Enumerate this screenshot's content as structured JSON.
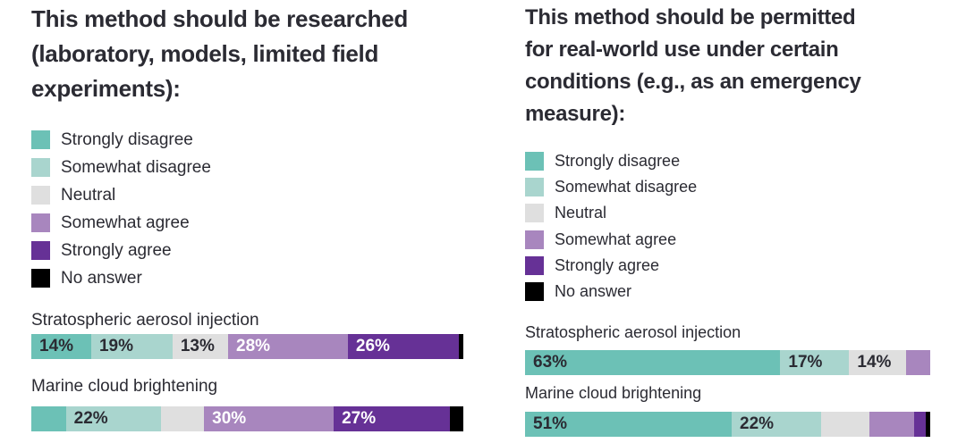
{
  "chart_data": [
    {
      "type": "bar",
      "orientation": "horizontal-stacked-100",
      "title": "This method should be researched (laboratory, models, limited field experiments):",
      "title_lines": [
        "This method should be researched",
        "(laboratory, models, limited field",
        "experiments):"
      ],
      "legend": [
        "Strongly disagree",
        "Somewhat disagree",
        "Neutral",
        "Somewhat agree",
        "Strongly agree",
        "No answer"
      ],
      "categories": [
        "Stratospheric aerosol injection",
        "Marine cloud brightening"
      ],
      "series": [
        {
          "name": "Strongly disagree",
          "values": [
            14,
            8
          ]
        },
        {
          "name": "Somewhat disagree",
          "values": [
            19,
            22
          ]
        },
        {
          "name": "Neutral",
          "values": [
            13,
            10
          ]
        },
        {
          "name": "Somewhat agree",
          "values": [
            28,
            30
          ]
        },
        {
          "name": "Strongly agree",
          "values": [
            26,
            27
          ]
        },
        {
          "name": "No answer",
          "values": [
            1,
            3
          ]
        }
      ],
      "xlim": [
        0,
        100
      ]
    },
    {
      "type": "bar",
      "orientation": "horizontal-stacked-100",
      "title": "This method should be permitted for real-world use under certain conditions (e.g., as an emergency measure):",
      "title_lines": [
        "This method should be permitted",
        "for real-world use under certain",
        "conditions (e.g., as an emergency",
        "measure):"
      ],
      "legend": [
        "Strongly disagree",
        "Somewhat disagree",
        "Neutral",
        "Somewhat agree",
        "Strongly agree",
        "No answer"
      ],
      "categories": [
        "Stratospheric aerosol injection",
        "Marine cloud brightening"
      ],
      "series": [
        {
          "name": "Strongly disagree",
          "values": [
            63,
            51
          ]
        },
        {
          "name": "Somewhat disagree",
          "values": [
            17,
            22
          ]
        },
        {
          "name": "Neutral",
          "values": [
            14,
            12
          ]
        },
        {
          "name": "Somewhat agree",
          "values": [
            6,
            11
          ]
        },
        {
          "name": "Strongly agree",
          "values": [
            0,
            3
          ]
        },
        {
          "name": "No answer",
          "values": [
            0,
            1
          ]
        }
      ],
      "xlim": [
        0,
        100
      ]
    }
  ],
  "colors": [
    "#6cc1b6",
    "#a9d5ce",
    "#dfdfdf",
    "#a886be",
    "#663196",
    "#000000"
  ],
  "label_colors": [
    "#2b2b33",
    "#2b2b33",
    "#2b2b33",
    "#ffffff",
    "#ffffff",
    "#ffffff"
  ],
  "label_min": 13
}
